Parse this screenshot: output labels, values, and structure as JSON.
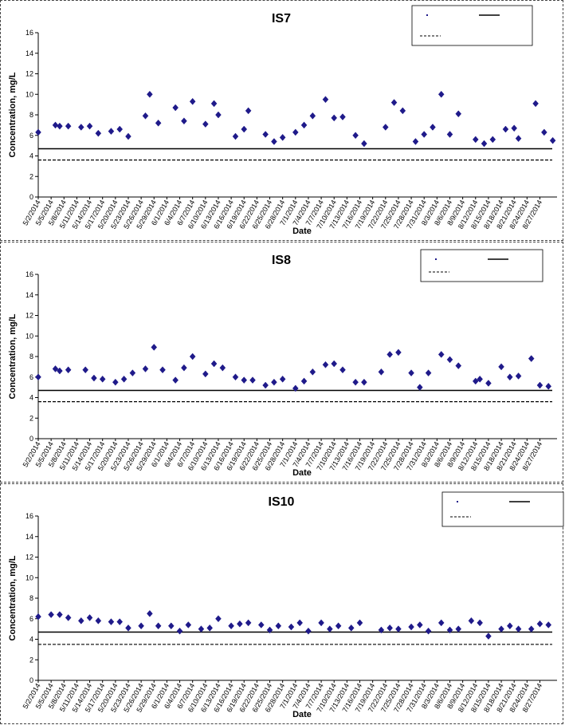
{
  "colors": {
    "marker": "#1f1a8a",
    "line": "#000000",
    "axis": "#000000"
  },
  "chart_data": [
    {
      "type": "scatter",
      "title": "IS7",
      "xlabel": "Date",
      "ylabel": "Concentration, mg/L",
      "ylim": [
        0,
        16
      ],
      "yticks": [
        0,
        2,
        4,
        6,
        8,
        10,
        12,
        14,
        16
      ],
      "x_tick_labels": [
        "5/2/2014",
        "5/5/2014",
        "5/8/2014",
        "5/11/2014",
        "5/14/2014",
        "5/17/2014",
        "5/20/2014",
        "5/23/2014",
        "5/26/2014",
        "5/29/2014",
        "6/1/2014",
        "6/4/2014",
        "6/7/2014",
        "6/10/2014",
        "6/13/2014",
        "6/16/2014",
        "6/19/2014",
        "6/22/2014",
        "6/25/2014",
        "6/28/2014",
        "7/1/2014",
        "7/4/2014",
        "7/7/2014",
        "7/10/2014",
        "7/13/2014",
        "7/16/2014",
        "7/19/2014",
        "7/22/2014",
        "7/25/2014",
        "7/28/2014",
        "7/31/2014",
        "8/3/2014",
        "8/6/2014",
        "8/9/2014",
        "8/12/2014",
        "8/15/2014",
        "8/18/2014",
        "8/21/2014",
        "8/24/2014",
        "8/27/2014"
      ],
      "hlines": [
        4.7,
        3.6
      ],
      "grid": false,
      "legend_position": "top-right",
      "points": [
        [
          "5/2/2014",
          6.3
        ],
        [
          "5/6/2014",
          7.0
        ],
        [
          "5/7/2014",
          6.9
        ],
        [
          "5/9/2014",
          6.9
        ],
        [
          "5/12/2014",
          6.8
        ],
        [
          "5/14/2014",
          6.9
        ],
        [
          "5/16/2014",
          6.2
        ],
        [
          "5/19/2014",
          6.4
        ],
        [
          "5/21/2014",
          6.6
        ],
        [
          "5/23/2014",
          5.9
        ],
        [
          "5/27/2014",
          7.9
        ],
        [
          "5/28/2014",
          10.0
        ],
        [
          "5/30/2014",
          7.2
        ],
        [
          "6/3/2014",
          8.7
        ],
        [
          "6/5/2014",
          7.4
        ],
        [
          "6/7/2014",
          9.3
        ],
        [
          "6/10/2014",
          7.1
        ],
        [
          "6/12/2014",
          9.1
        ],
        [
          "6/13/2014",
          8.0
        ],
        [
          "6/17/2014",
          5.9
        ],
        [
          "6/19/2014",
          6.6
        ],
        [
          "6/20/2014",
          8.4
        ],
        [
          "6/24/2014",
          6.1
        ],
        [
          "6/26/2014",
          5.4
        ],
        [
          "6/28/2014",
          5.8
        ],
        [
          "7/1/2014",
          6.3
        ],
        [
          "7/3/2014",
          7.0
        ],
        [
          "7/5/2014",
          7.9
        ],
        [
          "7/8/2014",
          9.5
        ],
        [
          "7/10/2014",
          7.7
        ],
        [
          "7/12/2014",
          7.8
        ],
        [
          "7/15/2014",
          6.0
        ],
        [
          "7/17/2014",
          5.2
        ],
        [
          "7/22/2014",
          6.8
        ],
        [
          "7/24/2014",
          9.2
        ],
        [
          "7/26/2014",
          8.4
        ],
        [
          "7/29/2014",
          5.4
        ],
        [
          "7/31/2014",
          6.1
        ],
        [
          "8/2/2014",
          6.8
        ],
        [
          "8/4/2014",
          10.0
        ],
        [
          "8/6/2014",
          6.1
        ],
        [
          "8/8/2014",
          8.1
        ],
        [
          "8/12/2014",
          5.6
        ],
        [
          "8/14/2014",
          5.2
        ],
        [
          "8/16/2014",
          5.6
        ],
        [
          "8/19/2014",
          6.6
        ],
        [
          "8/21/2014",
          6.7
        ],
        [
          "8/22/2014",
          5.7
        ],
        [
          "8/26/2014",
          9.1
        ],
        [
          "8/28/2014",
          6.3
        ],
        [
          "8/30/2014",
          5.5
        ]
      ]
    },
    {
      "type": "scatter",
      "title": "IS8",
      "xlabel": "Date",
      "ylabel": "Concentration, mg/L",
      "ylim": [
        0,
        16
      ],
      "yticks": [
        0,
        2,
        4,
        6,
        8,
        10,
        12,
        14,
        16
      ],
      "x_tick_labels": [
        "5/2/2014",
        "5/5/2014",
        "5/8/2014",
        "5/11/2014",
        "5/14/2014",
        "5/17/2014",
        "5/20/2014",
        "5/23/2014",
        "5/26/2014",
        "5/29/2014",
        "6/1/2014",
        "6/4/2014",
        "6/7/2014",
        "6/10/2014",
        "6/13/2014",
        "6/16/2014",
        "6/19/2014",
        "6/22/2014",
        "6/25/2014",
        "6/28/2014",
        "7/1/2014",
        "7/4/2014",
        "7/7/2014",
        "7/10/2014",
        "7/13/2014",
        "7/16/2014",
        "7/19/2014",
        "7/22/2014",
        "7/25/2014",
        "7/28/2014",
        "7/31/2014",
        "8/3/2014",
        "8/6/2014",
        "8/9/2014",
        "8/12/2014",
        "8/15/2014",
        "8/18/2014",
        "8/21/2014",
        "8/24/2014",
        "8/27/2014"
      ],
      "hlines": [
        4.7,
        3.6
      ],
      "grid": false,
      "legend_position": "top-right",
      "points": [
        [
          "5/2/2014",
          6.0
        ],
        [
          "5/6/2014",
          6.8
        ],
        [
          "5/7/2014",
          6.6
        ],
        [
          "5/9/2014",
          6.7
        ],
        [
          "5/13/2014",
          6.7
        ],
        [
          "5/15/2014",
          5.9
        ],
        [
          "5/17/2014",
          5.8
        ],
        [
          "5/20/2014",
          5.5
        ],
        [
          "5/22/2014",
          5.8
        ],
        [
          "5/24/2014",
          6.4
        ],
        [
          "5/27/2014",
          6.8
        ],
        [
          "5/29/2014",
          8.9
        ],
        [
          "5/31/2014",
          6.7
        ],
        [
          "6/3/2014",
          5.7
        ],
        [
          "6/5/2014",
          6.9
        ],
        [
          "6/7/2014",
          8.0
        ],
        [
          "6/10/2014",
          6.3
        ],
        [
          "6/12/2014",
          7.3
        ],
        [
          "6/14/2014",
          6.9
        ],
        [
          "6/17/2014",
          6.0
        ],
        [
          "6/19/2014",
          5.7
        ],
        [
          "6/21/2014",
          5.7
        ],
        [
          "6/24/2014",
          5.2
        ],
        [
          "6/26/2014",
          5.5
        ],
        [
          "6/28/2014",
          5.8
        ],
        [
          "7/1/2014",
          4.9
        ],
        [
          "7/3/2014",
          5.6
        ],
        [
          "7/5/2014",
          6.5
        ],
        [
          "7/8/2014",
          7.2
        ],
        [
          "7/10/2014",
          7.3
        ],
        [
          "7/12/2014",
          6.7
        ],
        [
          "7/15/2014",
          5.5
        ],
        [
          "7/17/2014",
          5.5
        ],
        [
          "7/21/2014",
          6.5
        ],
        [
          "7/23/2014",
          8.2
        ],
        [
          "7/25/2014",
          8.4
        ],
        [
          "7/28/2014",
          6.4
        ],
        [
          "7/30/2014",
          5.0
        ],
        [
          "8/1/2014",
          6.4
        ],
        [
          "8/4/2014",
          8.2
        ],
        [
          "8/6/2014",
          7.7
        ],
        [
          "8/8/2014",
          7.1
        ],
        [
          "8/12/2014",
          5.6
        ],
        [
          "8/13/2014",
          5.8
        ],
        [
          "8/15/2014",
          5.4
        ],
        [
          "8/18/2014",
          7.0
        ],
        [
          "8/20/2014",
          6.0
        ],
        [
          "8/22/2014",
          6.1
        ],
        [
          "8/25/2014",
          7.8
        ],
        [
          "8/27/2014",
          5.2
        ],
        [
          "8/29/2014",
          5.1
        ]
      ]
    },
    {
      "type": "scatter",
      "title": "IS10",
      "xlabel": "Date",
      "ylabel": "Concentration, mg/L",
      "ylim": [
        0,
        16
      ],
      "yticks": [
        0,
        2,
        4,
        6,
        8,
        10,
        12,
        14,
        16
      ],
      "x_tick_labels": [
        "5/2/2014",
        "5/5/2014",
        "5/8/2014",
        "5/11/2014",
        "5/14/2014",
        "5/17/2014",
        "5/20/2014",
        "5/23/2014",
        "5/26/2014",
        "5/29/2014",
        "6/1/2014",
        "6/4/2014",
        "6/7/2014",
        "6/10/2014",
        "6/13/2014",
        "6/16/2014",
        "6/19/2014",
        "6/22/2014",
        "6/25/2014",
        "6/28/2014",
        "7/1/2014",
        "7/4/2014",
        "7/7/2014",
        "7/10/2014",
        "7/13/2014",
        "7/16/2014",
        "7/19/2014",
        "7/22/2014",
        "7/25/2014",
        "7/28/2014",
        "7/31/2014",
        "8/3/2014",
        "8/6/2014",
        "8/9/2014",
        "8/12/2014",
        "8/15/2014",
        "8/18/2014",
        "8/21/2014",
        "8/24/2014",
        "8/27/2014"
      ],
      "hlines": [
        4.7,
        3.5
      ],
      "grid": false,
      "legend_position": "top-right",
      "points": [
        [
          "5/2/2014",
          6.2
        ],
        [
          "5/5/2014",
          6.4
        ],
        [
          "5/7/2014",
          6.4
        ],
        [
          "5/9/2014",
          6.1
        ],
        [
          "5/12/2014",
          5.8
        ],
        [
          "5/14/2014",
          6.1
        ],
        [
          "5/16/2014",
          5.8
        ],
        [
          "5/19/2014",
          5.7
        ],
        [
          "5/21/2014",
          5.7
        ],
        [
          "5/23/2014",
          5.1
        ],
        [
          "5/26/2014",
          5.3
        ],
        [
          "5/28/2014",
          6.5
        ],
        [
          "5/30/2014",
          5.3
        ],
        [
          "6/2/2014",
          5.3
        ],
        [
          "6/4/2014",
          4.8
        ],
        [
          "6/6/2014",
          5.4
        ],
        [
          "6/9/2014",
          5.0
        ],
        [
          "6/11/2014",
          5.1
        ],
        [
          "6/13/2014",
          6.0
        ],
        [
          "6/16/2014",
          5.3
        ],
        [
          "6/18/2014",
          5.5
        ],
        [
          "6/20/2014",
          5.6
        ],
        [
          "6/23/2014",
          5.4
        ],
        [
          "6/25/2014",
          4.9
        ],
        [
          "6/27/2014",
          5.3
        ],
        [
          "6/30/2014",
          5.2
        ],
        [
          "7/2/2014",
          5.6
        ],
        [
          "7/4/2014",
          4.8
        ],
        [
          "7/7/2014",
          5.6
        ],
        [
          "7/9/2014",
          5.0
        ],
        [
          "7/11/2014",
          5.3
        ],
        [
          "7/14/2014",
          5.1
        ],
        [
          "7/16/2014",
          5.6
        ],
        [
          "7/21/2014",
          4.9
        ],
        [
          "7/23/2014",
          5.1
        ],
        [
          "7/25/2014",
          5.0
        ],
        [
          "7/28/2014",
          5.2
        ],
        [
          "7/30/2014",
          5.4
        ],
        [
          "8/1/2014",
          4.8
        ],
        [
          "8/4/2014",
          5.6
        ],
        [
          "8/6/2014",
          4.9
        ],
        [
          "8/8/2014",
          5.0
        ],
        [
          "8/11/2014",
          5.8
        ],
        [
          "8/13/2014",
          5.6
        ],
        [
          "8/15/2014",
          4.3
        ],
        [
          "8/18/2014",
          5.0
        ],
        [
          "8/20/2014",
          5.3
        ],
        [
          "8/22/2014",
          5.0
        ],
        [
          "8/25/2014",
          5.0
        ],
        [
          "8/27/2014",
          5.5
        ],
        [
          "8/29/2014",
          5.4
        ]
      ]
    }
  ]
}
